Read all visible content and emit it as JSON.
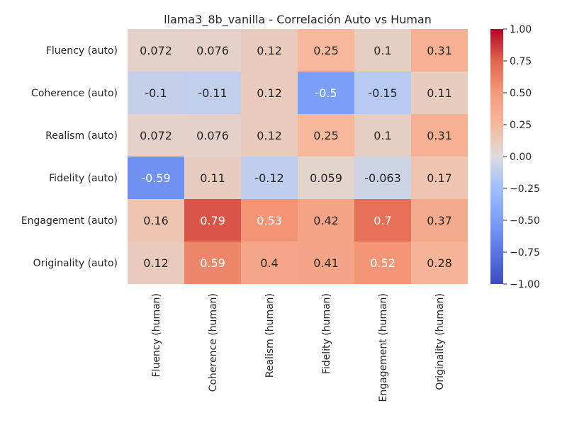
{
  "chart_data": {
    "type": "heatmap",
    "title": "llama3_8b_vanilla - Correlación Auto vs Human",
    "rows": [
      "Fluency (auto)",
      "Coherence (auto)",
      "Realism (auto)",
      "Fidelity (auto)",
      "Engagement (auto)",
      "Originality (auto)"
    ],
    "columns": [
      "Fluency (human)",
      "Coherence (human)",
      "Realism (human)",
      "Fidelity (human)",
      "Engagement (human)",
      "Originality (human)"
    ],
    "values": [
      [
        0.072,
        0.076,
        0.12,
        0.25,
        0.1,
        0.31
      ],
      [
        -0.1,
        -0.11,
        0.12,
        -0.5,
        -0.15,
        0.11
      ],
      [
        0.072,
        0.076,
        0.12,
        0.25,
        0.1,
        0.31
      ],
      [
        -0.59,
        0.11,
        -0.12,
        0.059,
        -0.063,
        0.17
      ],
      [
        0.16,
        0.79,
        0.53,
        0.42,
        0.7,
        0.37
      ],
      [
        0.12,
        0.59,
        0.4,
        0.41,
        0.52,
        0.28
      ]
    ],
    "value_labels": [
      [
        "0.072",
        "0.076",
        "0.12",
        "0.25",
        "0.1",
        "0.31"
      ],
      [
        "-0.1",
        "-0.11",
        "0.12",
        "-0.5",
        "-0.15",
        "0.11"
      ],
      [
        "0.072",
        "0.076",
        "0.12",
        "0.25",
        "0.1",
        "0.31"
      ],
      [
        "-0.59",
        "0.11",
        "-0.12",
        "0.059",
        "-0.063",
        "0.17"
      ],
      [
        "0.16",
        "0.79",
        "0.53",
        "0.42",
        "0.7",
        "0.37"
      ],
      [
        "0.12",
        "0.59",
        "0.4",
        "0.41",
        "0.52",
        "0.28"
      ]
    ],
    "colormap": "coolwarm",
    "vmin": -1.0,
    "vmax": 1.0,
    "colorbar_ticks": [
      1.0,
      0.75,
      0.5,
      0.25,
      0.0,
      -0.25,
      -0.5,
      -0.75,
      -1.0
    ],
    "colorbar_tick_labels": [
      "1.00",
      "0.75",
      "0.50",
      "0.25",
      "0.00",
      "−0.25",
      "−0.50",
      "−0.75",
      "−1.00"
    ]
  }
}
